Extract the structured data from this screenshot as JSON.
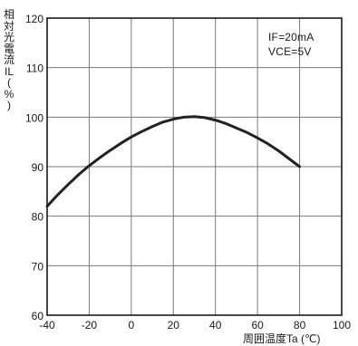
{
  "chart_data": {
    "type": "line",
    "title": "",
    "ylabel": "相対光電流 IL (%)",
    "ylabel_chars": [
      "相",
      "対",
      "光",
      "電",
      "流",
      "IL",
      "(",
      "%",
      ")"
    ],
    "xlabel": "周囲温度Ta (℃)",
    "xlim": [
      -40,
      100
    ],
    "ylim": [
      60,
      120
    ],
    "x_ticks": [
      "-40",
      "-20",
      "0",
      "20",
      "40",
      "60",
      "80",
      "100"
    ],
    "y_ticks": [
      "60",
      "70",
      "80",
      "90",
      "100",
      "110",
      "120"
    ],
    "grid": true,
    "annotations": [
      "IF=20mA",
      "VCE=5V"
    ],
    "series": [
      {
        "x": [
          -40,
          -35,
          -30,
          -25,
          -20,
          -15,
          -10,
          -5,
          0,
          5,
          10,
          15,
          20,
          25,
          30,
          35,
          40,
          45,
          50,
          55,
          60,
          65,
          70,
          75,
          80
        ],
        "y": [
          82,
          84.3,
          86.4,
          88.4,
          90.2,
          91.8,
          93.3,
          94.7,
          96,
          97.1,
          98.1,
          99,
          99.6,
          100,
          100.1,
          99.9,
          99.4,
          98.7,
          97.8,
          96.9,
          95.8,
          94.6,
          93.2,
          91.6,
          90
        ]
      }
    ]
  },
  "colors": {
    "line": "#222222",
    "grid": "#7a7a7a",
    "frame": "#1a1a1a",
    "text": "#1a1a1a"
  }
}
